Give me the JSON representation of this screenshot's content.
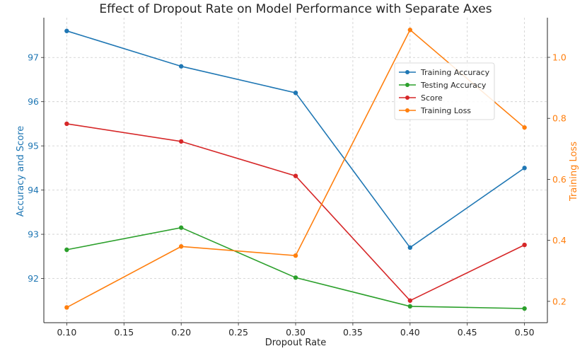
{
  "chart_data": {
    "type": "line",
    "title": "Effect of Dropout Rate on Model Performance with Separate Axes",
    "xlabel": "Dropout Rate",
    "ylabel_left": "Accuracy and Score",
    "ylabel_right": "Training Loss",
    "x": [
      0.1,
      0.2,
      0.3,
      0.4,
      0.5
    ],
    "xlim": [
      0.08,
      0.52
    ],
    "ylim_left": [
      91.0,
      97.9
    ],
    "ylim_right": [
      0.13,
      1.13
    ],
    "x_ticks": [
      "0.10",
      "0.15",
      "0.20",
      "0.25",
      "0.30",
      "0.35",
      "0.40",
      "0.45",
      "0.50"
    ],
    "y_ticks_left": [
      "92",
      "93",
      "94",
      "95",
      "96",
      "97"
    ],
    "y_ticks_right": [
      "0.2",
      "0.4",
      "0.6",
      "0.8",
      "1.0"
    ],
    "grid": true,
    "legend_position": "upper-right",
    "left_axis_color": "#1f77b4",
    "right_axis_color": "#ff7f0e",
    "series": [
      {
        "name": "Training Accuracy",
        "axis": "left",
        "color": "#1f77b4",
        "values": [
          97.6,
          96.8,
          96.2,
          92.7,
          94.5
        ]
      },
      {
        "name": "Testing Accuracy",
        "axis": "left",
        "color": "#2ca02c",
        "values": [
          92.65,
          93.15,
          92.02,
          91.37,
          91.32
        ]
      },
      {
        "name": "Score",
        "axis": "left",
        "color": "#d62728",
        "values": [
          95.5,
          95.1,
          94.32,
          91.5,
          92.76
        ]
      },
      {
        "name": "Training Loss",
        "axis": "right",
        "color": "#ff7f0e",
        "values": [
          0.18,
          0.38,
          0.35,
          1.09,
          0.77
        ]
      }
    ]
  }
}
